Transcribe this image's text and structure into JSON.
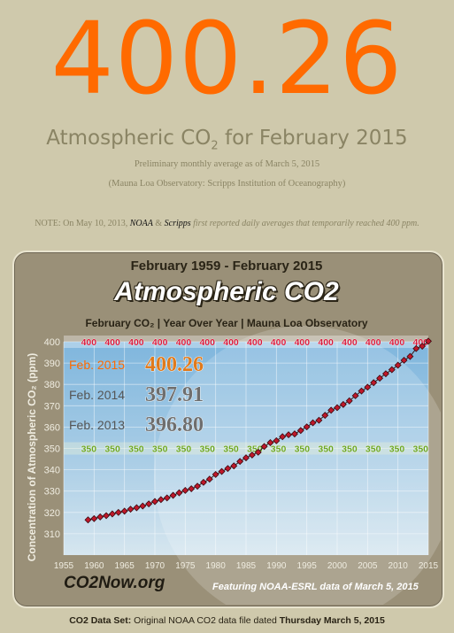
{
  "headline": {
    "value": "400.26",
    "title_prefix": "Atmospheric CO",
    "title_sub": "2",
    "title_suffix": " for February 2015",
    "subtitle1": "Preliminary monthly average as of March 5, 2015",
    "subtitle2": "(Mauna Loa Observatory: Scripps Institution of Oceanography)"
  },
  "note": {
    "prefix": "NOTE:  On May 10, 2013, ",
    "noaa": "NOAA",
    "amp": " & ",
    "scripps": "Scripps",
    "rest": " first reported daily averages that temporarily reached 400 ppm."
  },
  "panel": {
    "heading1": "February 1959 - February 2015",
    "heading2": "Atmospheric CO2",
    "heading3": "February CO₂  |  Year Over Year  |  Mauna Loa Observatory",
    "logo": "CO2Now.org",
    "featuring": "Featuring NOAA-ESRL data of March 5, 2015"
  },
  "footer": {
    "label": "CO2 Data Set:",
    "text": "  Original NOAA CO2 data file dated  ",
    "date": "Thursday March 5, 2015"
  },
  "colors": {
    "accent": "#ff6a00",
    "marker": "#c0182a",
    "line400": "#d81b3c",
    "line350": "#6aa520"
  },
  "chart_data": {
    "type": "line",
    "title": "Atmospheric CO2",
    "ylabel": "Concentration of  Atmospheric  CO₂  (ppm)",
    "xlabel": "",
    "xlim": [
      1955,
      2015
    ],
    "ylim": [
      300,
      400
    ],
    "xticks": [
      "1955",
      "1960",
      "1965",
      "1970",
      "1975",
      "1980",
      "1985",
      "1990",
      "1995",
      "2000",
      "2005",
      "2010",
      "2015"
    ],
    "yticks": [
      "310",
      "320",
      "330",
      "340",
      "350",
      "360",
      "370",
      "380",
      "390",
      "400"
    ],
    "reference_lines": [
      {
        "value": 400,
        "label": "400"
      },
      {
        "value": 350,
        "label": "350"
      }
    ],
    "callouts": [
      {
        "label": "Feb. 2015",
        "value": "400.26"
      },
      {
        "label": "Feb. 2014",
        "value": "397.91"
      },
      {
        "label": "Feb. 2013",
        "value": "396.80"
      }
    ],
    "x": [
      1959,
      1960,
      1961,
      1962,
      1963,
      1964,
      1965,
      1966,
      1967,
      1968,
      1969,
      1970,
      1971,
      1972,
      1973,
      1974,
      1975,
      1976,
      1977,
      1978,
      1979,
      1980,
      1981,
      1982,
      1983,
      1984,
      1985,
      1986,
      1987,
      1988,
      1989,
      1990,
      1991,
      1992,
      1993,
      1994,
      1995,
      1996,
      1997,
      1998,
      1999,
      2000,
      2001,
      2002,
      2003,
      2004,
      2005,
      2006,
      2007,
      2008,
      2009,
      2010,
      2011,
      2012,
      2013,
      2014,
      2015
    ],
    "values": [
      316.5,
      317.1,
      317.9,
      318.5,
      319.3,
      320.0,
      320.6,
      321.5,
      322.2,
      323.0,
      324.0,
      325.1,
      326.0,
      326.8,
      328.0,
      329.2,
      330.3,
      331.1,
      332.3,
      334.1,
      335.6,
      337.8,
      339.2,
      340.6,
      341.8,
      343.9,
      345.6,
      346.9,
      348.2,
      350.9,
      352.7,
      353.6,
      355.5,
      356.4,
      356.8,
      358.4,
      360.1,
      362.0,
      363.2,
      365.5,
      367.9,
      369.1,
      370.6,
      372.3,
      374.7,
      376.9,
      378.7,
      380.8,
      382.9,
      385.0,
      386.9,
      389.0,
      391.3,
      393.1,
      396.8,
      397.91,
      400.26
    ]
  }
}
